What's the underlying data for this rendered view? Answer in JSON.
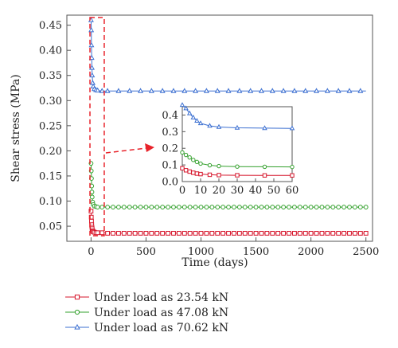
{
  "chart_data": {
    "type": "line",
    "xlabel": "Time (days)",
    "ylabel": "Shear stress (MPa)",
    "xlim": [
      -220,
      2560
    ],
    "ylim": [
      0.02,
      0.47
    ],
    "x_ticks": [
      0,
      500,
      1000,
      1500,
      2000,
      2500
    ],
    "y_ticks": [
      0.05,
      0.1,
      0.15,
      0.2,
      0.25,
      0.3,
      0.35,
      0.4,
      0.45
    ],
    "grid": false,
    "legend_position": "bottom-left, below plot",
    "series": [
      {
        "name": "Under load as 23.54 kN",
        "color": "#d6152b",
        "marker": "square",
        "x": [
          0,
          2,
          4,
          6,
          8,
          10,
          15,
          20,
          30,
          45,
          60,
          100,
          200,
          400,
          700,
          1000,
          1500,
          2000,
          2500
        ],
        "y": [
          0.08,
          0.068,
          0.06,
          0.053,
          0.048,
          0.045,
          0.041,
          0.039,
          0.038,
          0.037,
          0.037,
          0.037,
          0.036,
          0.036,
          0.036,
          0.036,
          0.036,
          0.036,
          0.036
        ]
      },
      {
        "name": "Under load as 47.08 kN",
        "color": "#33a02c",
        "marker": "circle",
        "x": [
          0,
          2,
          4,
          6,
          8,
          10,
          15,
          20,
          30,
          45,
          60,
          100,
          200,
          400,
          700,
          1000,
          1500,
          2000,
          2500
        ],
        "y": [
          0.175,
          0.16,
          0.145,
          0.13,
          0.118,
          0.108,
          0.098,
          0.093,
          0.09,
          0.089,
          0.088,
          0.088,
          0.088,
          0.088,
          0.088,
          0.088,
          0.088,
          0.088,
          0.088
        ]
      },
      {
        "name": "Under load as 70.62 kN",
        "color": "#3b6fd1",
        "marker": "triangle",
        "x": [
          0,
          2,
          4,
          6,
          8,
          10,
          15,
          20,
          30,
          45,
          60,
          100,
          200,
          400,
          700,
          1000,
          1500,
          2000,
          2500
        ],
        "y": [
          0.46,
          0.44,
          0.41,
          0.385,
          0.365,
          0.35,
          0.335,
          0.328,
          0.323,
          0.321,
          0.32,
          0.319,
          0.319,
          0.319,
          0.319,
          0.319,
          0.319,
          0.319,
          0.319
        ]
      }
    ],
    "inset": {
      "xlim": [
        0,
        60
      ],
      "ylim": [
        0.0,
        0.45
      ],
      "x_ticks": [
        0,
        10,
        20,
        30,
        40,
        50,
        60
      ],
      "y_ticks": [
        0.0,
        0.1,
        0.2,
        0.3,
        0.4
      ]
    },
    "annotation": {
      "highlight_region_x": [
        -10,
        120
      ],
      "highlight_region_y": [
        0.02,
        0.47
      ],
      "arrow": "from highlight box to inset"
    }
  },
  "colors": {
    "axis": "#555555",
    "annotation": "#e8232b"
  }
}
